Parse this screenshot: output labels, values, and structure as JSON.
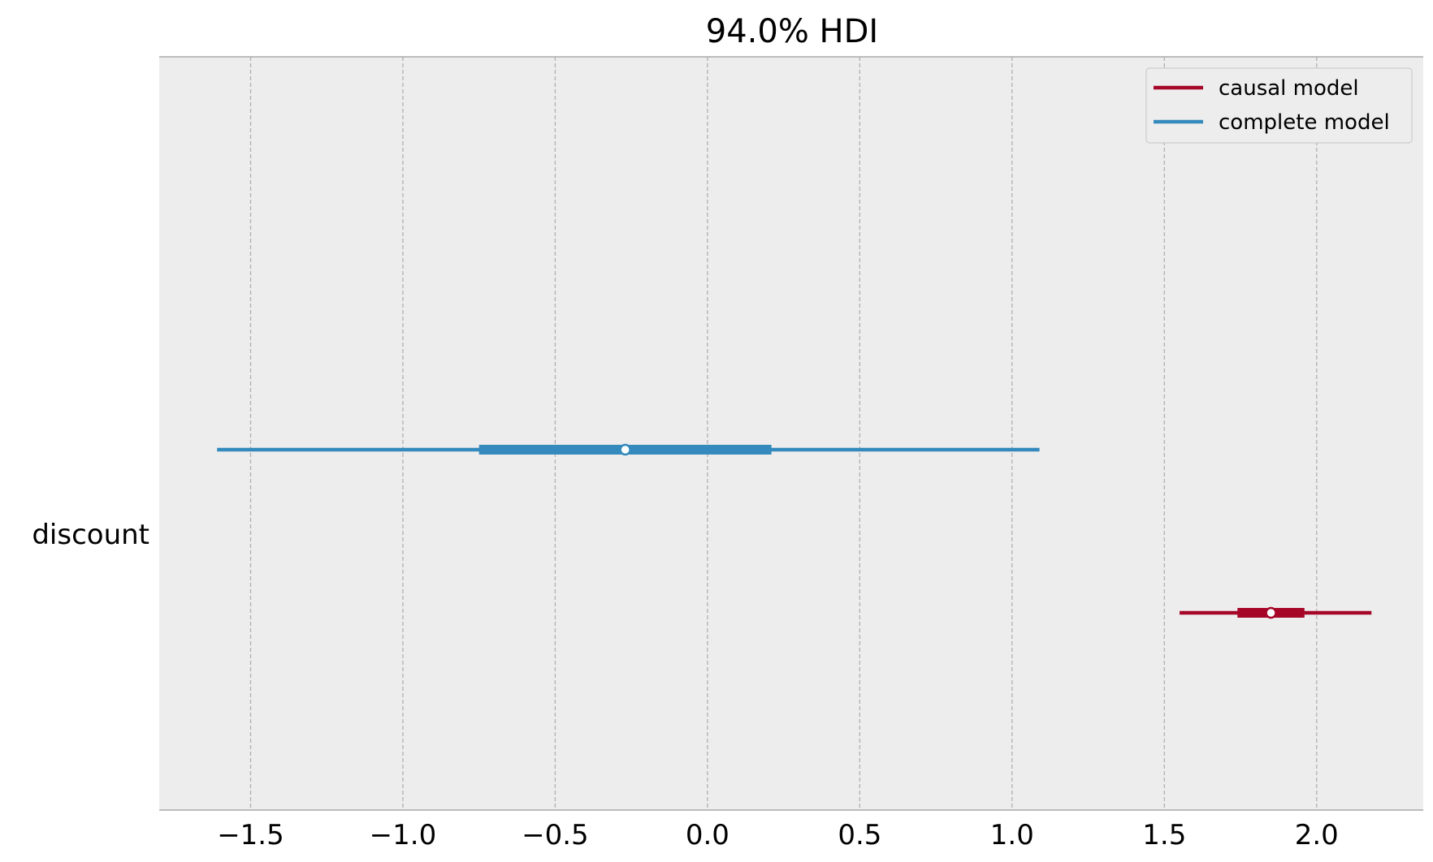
{
  "chart_data": {
    "type": "forest",
    "title": "94.0% HDI",
    "xlim": [
      -1.8,
      2.35
    ],
    "x_ticks": [
      -1.5,
      -1.0,
      -0.5,
      0.0,
      0.5,
      1.0,
      1.5,
      2.0
    ],
    "x_tick_labels": [
      "−1.5",
      "−1.0",
      "−0.5",
      "0.0",
      "0.5",
      "1.0",
      "1.5",
      "2.0"
    ],
    "grid": "x-dashed",
    "legend_position": "top-right",
    "variable": "discount",
    "series": [
      {
        "name": "causal model",
        "color": "#A60628",
        "hdi_94": [
          1.55,
          2.18
        ],
        "iqr": [
          1.74,
          1.96
        ],
        "point": 1.85
      },
      {
        "name": "complete model",
        "color": "#348ABD",
        "hdi_94": [
          -1.61,
          1.09
        ],
        "iqr": [
          -0.75,
          0.21
        ],
        "point": -0.27
      }
    ],
    "colors": {
      "plot_background": "#EDEDED",
      "grid": "#B0B0B0",
      "spine": "#AAAAAA"
    }
  }
}
